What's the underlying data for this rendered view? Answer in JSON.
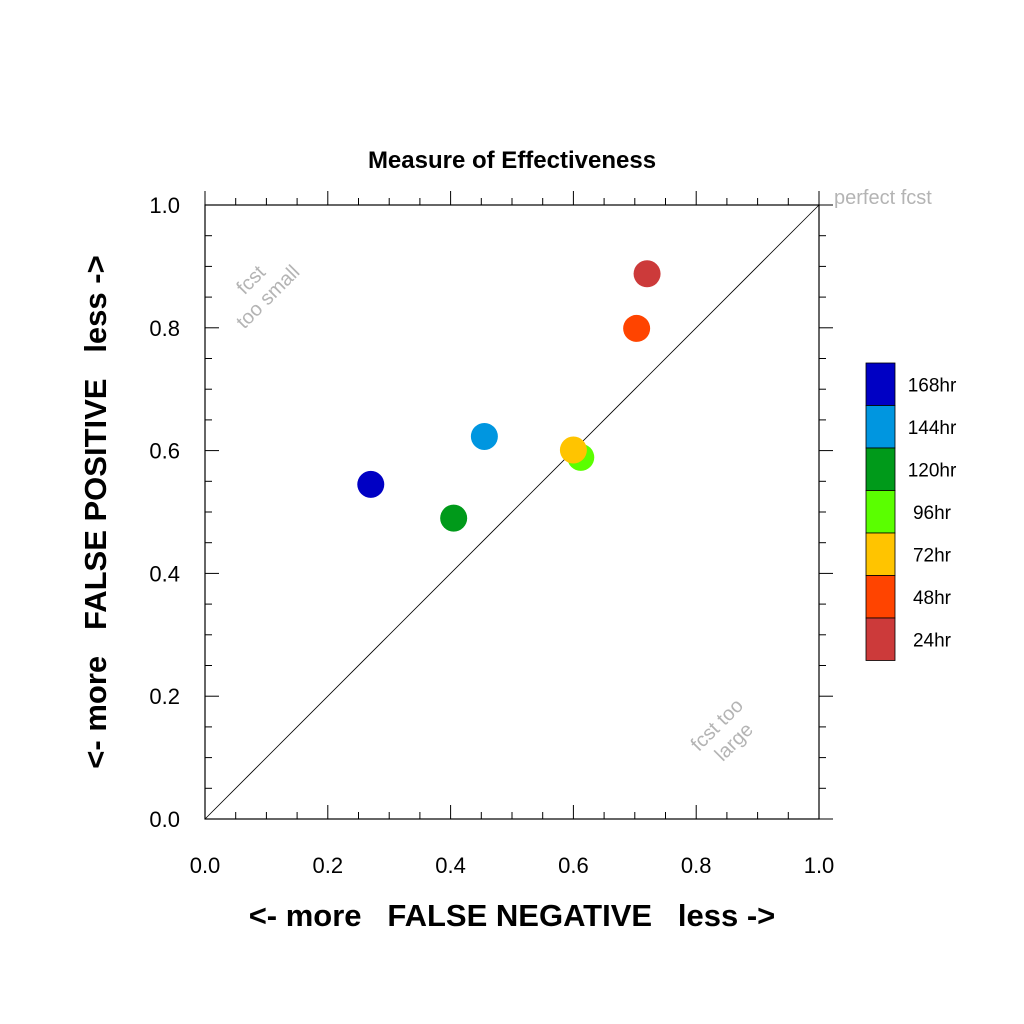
{
  "chart_data": {
    "type": "scatter",
    "title": "Measure of Effectiveness",
    "xlabel": "<- more   FALSE NEGATIVE   less ->",
    "ylabel": "<- more   FALSE POSITIVE   less ->",
    "xlim": [
      0,
      1
    ],
    "ylim": [
      0,
      1
    ],
    "xticks": [
      "0.0",
      "0.2",
      "0.4",
      "0.6",
      "0.8",
      "1.0"
    ],
    "yticks": [
      "0.0",
      "0.2",
      "0.4",
      "0.6",
      "0.8",
      "1.0"
    ],
    "grid": false,
    "diagonal_reference_line": true,
    "legend_placement": "right",
    "annotations": {
      "top_right": "perfect fcst",
      "upper_left": [
        "fcst",
        "too small"
      ],
      "lower_right": [
        "fcst too",
        "large"
      ]
    },
    "series": [
      {
        "name": "168hr",
        "color": "#0000c4",
        "x": 0.27,
        "y": 0.545
      },
      {
        "name": "144hr",
        "color": "#0096e0",
        "x": 0.455,
        "y": 0.623
      },
      {
        "name": "120hr",
        "color": "#009a1a",
        "x": 0.405,
        "y": 0.49
      },
      {
        "name": "96hr",
        "color": "#5aff00",
        "x": 0.612,
        "y": 0.589
      },
      {
        "name": "72hr",
        "color": "#ffc400",
        "x": 0.6,
        "y": 0.601
      },
      {
        "name": "48hr",
        "color": "#ff4400",
        "x": 0.703,
        "y": 0.799
      },
      {
        "name": "24hr",
        "color": "#cc3a3a",
        "x": 0.72,
        "y": 0.888
      }
    ]
  }
}
